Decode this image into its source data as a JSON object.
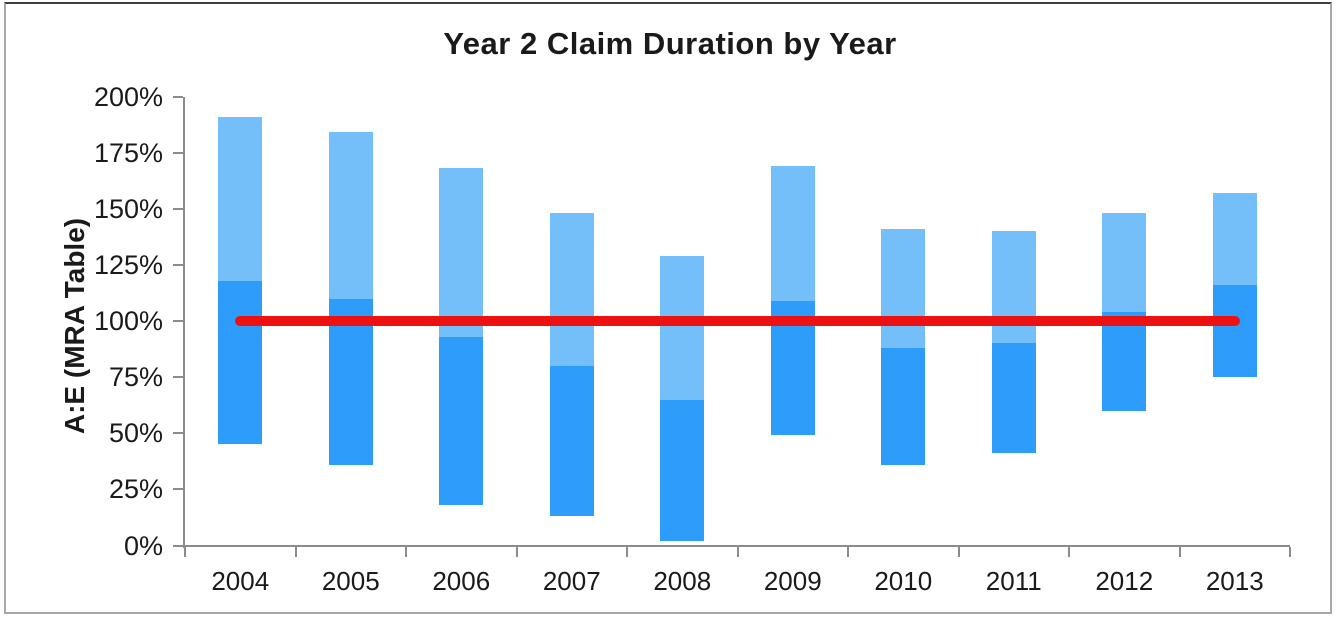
{
  "chart_data": {
    "type": "bar",
    "subtype": "floating-range-stacked-columns",
    "title": "Year 2 Claim Duration by Year",
    "xlabel": "",
    "ylabel": "A:E (MRA Table)",
    "units": "percent",
    "ylim": [
      0,
      200
    ],
    "y_tick_step": 25,
    "y_tick_labels": [
      "0%",
      "25%",
      "50%",
      "75%",
      "100%",
      "125%",
      "150%",
      "175%",
      "200%"
    ],
    "categories": [
      "2004",
      "2005",
      "2006",
      "2007",
      "2008",
      "2009",
      "2010",
      "2011",
      "2012",
      "2013"
    ],
    "series": [
      {
        "name": "range_low_pct",
        "role": "bottom of dark blue segment",
        "values": [
          45,
          36,
          18,
          13,
          2,
          49,
          36,
          41,
          60,
          75
        ]
      },
      {
        "name": "segment_boundary_pct",
        "role": "top of dark blue / bottom of light blue segment",
        "values": [
          118,
          110,
          93,
          80,
          65,
          109,
          88,
          90,
          104,
          116
        ]
      },
      {
        "name": "range_high_pct",
        "role": "top of light blue segment",
        "values": [
          191,
          184,
          168,
          148,
          129,
          169,
          141,
          140,
          148,
          157
        ]
      }
    ],
    "reference_line": {
      "value": 100,
      "color": "#ee1111"
    },
    "legend": null,
    "grid": false,
    "colors": {
      "bar_dark": "#2d9cfa",
      "bar_light": "#74bffa",
      "reference_line": "#ee1111",
      "axis": "#8c8c8c",
      "text": "#1a1a1a",
      "background": "#ffffff",
      "frame_border": "#a8a8a8"
    }
  }
}
